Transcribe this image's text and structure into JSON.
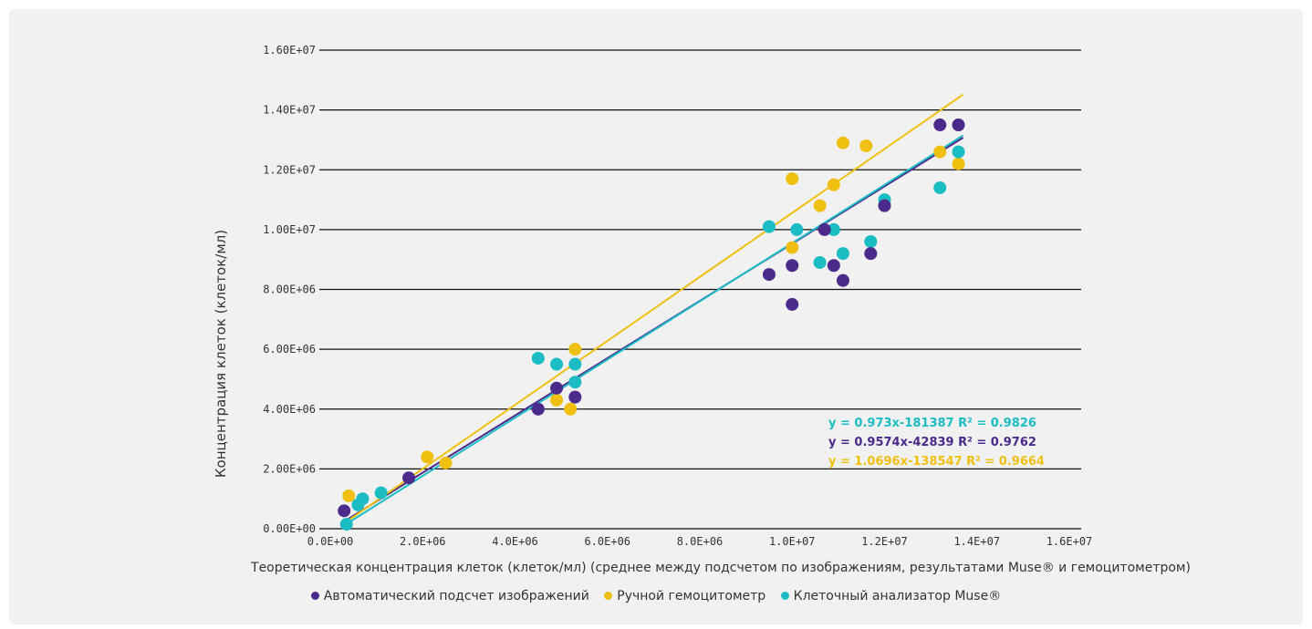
{
  "chart_data": {
    "type": "scatter",
    "xlabel": "Теоретическая концентрация клеток (клеток/мл) (среднее между подсчетом по изображениям, результатами Muse® и гемоцитометром)",
    "ylabel": "Концентрация клеток (клеток/мл)",
    "xlim": [
      0,
      16000000
    ],
    "ylim": [
      0,
      16000000
    ],
    "x_ticks": [
      0,
      2000000,
      4000000,
      6000000,
      8000000,
      10000000,
      12000000,
      14000000,
      16000000
    ],
    "x_tick_labels": [
      "0.0E+00",
      "2.0E+06",
      "4.0E+06",
      "6.0E+06",
      "8.0E+06",
      "1.0E+07",
      "1.2E+07",
      "1.4E+07",
      "1.6E+07"
    ],
    "y_ticks": [
      0,
      2000000,
      4000000,
      6000000,
      8000000,
      10000000,
      12000000,
      14000000,
      16000000
    ],
    "y_tick_labels": [
      "0.00E+00",
      "2.00E+06",
      "4.00E+06",
      "6.00E+06",
      "8.00E+06",
      "1.00E+07",
      "1.20E+07",
      "1.40E+07",
      "1.60E+07"
    ],
    "grid": "horizontal",
    "legend_position": "bottom-center",
    "series": [
      {
        "name": "Автоматический подсчет изображений",
        "color": "#4b2a8c",
        "trendline": {
          "slope": 0.9574,
          "intercept": -42839
        },
        "equation": "y = 0.9574x-42839 R² = 0.9762",
        "points": [
          [
            300000,
            600000
          ],
          [
            1700000,
            1700000
          ],
          [
            4500000,
            4000000
          ],
          [
            4900000,
            4700000
          ],
          [
            5300000,
            4400000
          ],
          [
            9500000,
            8500000
          ],
          [
            10000000,
            8800000
          ],
          [
            10000000,
            7500000
          ],
          [
            10700000,
            10000000
          ],
          [
            10900000,
            8800000
          ],
          [
            11100000,
            8300000
          ],
          [
            11700000,
            9200000
          ],
          [
            12000000,
            10800000
          ],
          [
            13200000,
            13500000
          ],
          [
            13600000,
            13500000
          ]
        ]
      },
      {
        "name": "Ручной гемоцитометр",
        "color": "#f0c010",
        "trendline": {
          "slope": 1.0696,
          "intercept": -138547
        },
        "equation": "y = 1.0696x-138547 R² = 0.9664",
        "points": [
          [
            400000,
            1100000
          ],
          [
            2100000,
            2400000
          ],
          [
            2500000,
            2200000
          ],
          [
            4900000,
            4300000
          ],
          [
            5200000,
            4000000
          ],
          [
            5300000,
            6000000
          ],
          [
            10000000,
            11700000
          ],
          [
            10000000,
            9400000
          ],
          [
            10600000,
            10800000
          ],
          [
            10900000,
            11500000
          ],
          [
            11100000,
            12900000
          ],
          [
            11600000,
            12800000
          ],
          [
            13200000,
            12600000
          ],
          [
            13600000,
            12200000
          ]
        ]
      },
      {
        "name": "Клеточный анализатор Muse®",
        "color": "#1cbcc4",
        "trendline": {
          "slope": 0.973,
          "intercept": -181387
        },
        "equation": "y = 0.973x-181387 R² = 0.9826",
        "points": [
          [
            350000,
            150000
          ],
          [
            600000,
            800000
          ],
          [
            700000,
            1000000
          ],
          [
            1100000,
            1200000
          ],
          [
            4500000,
            5700000
          ],
          [
            4900000,
            5500000
          ],
          [
            5300000,
            5500000
          ],
          [
            5300000,
            4900000
          ],
          [
            9500000,
            10100000
          ],
          [
            10100000,
            10000000
          ],
          [
            10600000,
            8900000
          ],
          [
            10900000,
            10000000
          ],
          [
            11100000,
            9200000
          ],
          [
            11700000,
            9600000
          ],
          [
            12000000,
            11000000
          ],
          [
            13200000,
            11400000
          ],
          [
            13600000,
            12600000
          ]
        ]
      }
    ]
  }
}
